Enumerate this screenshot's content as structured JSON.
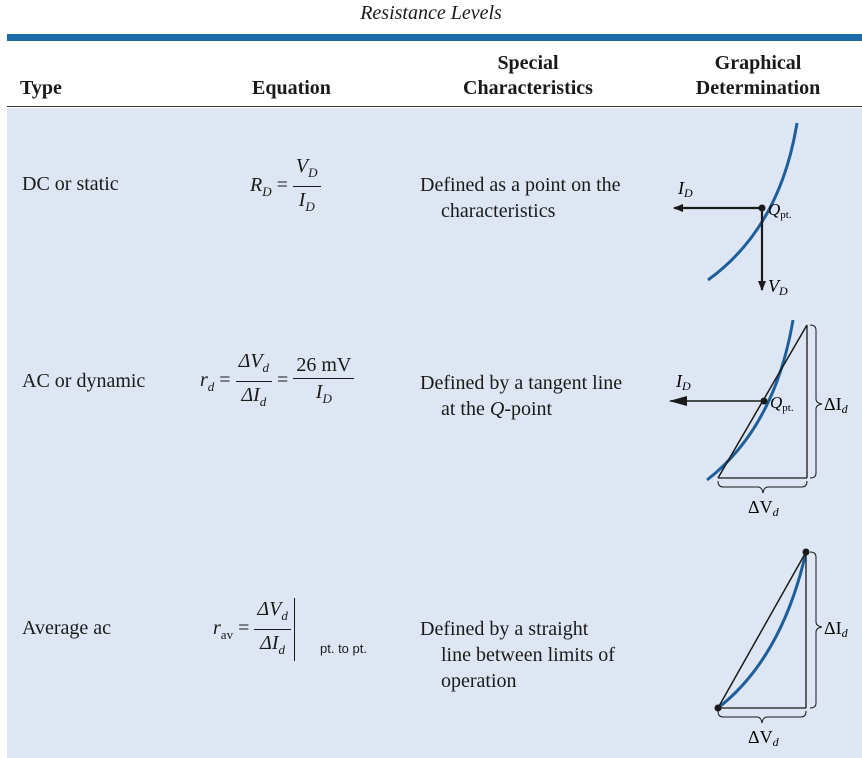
{
  "caption": "Resistance Levels",
  "headers": {
    "type": "Type",
    "equation": "Equation",
    "special_1": "Special",
    "special_2": "Characteristics",
    "graph_1": "Graphical",
    "graph_2": "Determination"
  },
  "rows": [
    {
      "type": "DC or static",
      "eq_lhs": "R",
      "eq_lhs_sub": "D",
      "eq_num": "V",
      "eq_num_sub": "D",
      "eq_den": "I",
      "eq_den_sub": "D",
      "desc_1": "Defined as a point on the",
      "desc_2": "characteristics",
      "g_label_i": "I",
      "g_label_i_sub": "D",
      "g_label_q": "Q",
      "g_label_q_sub": "pt.",
      "g_label_v": "V",
      "g_label_v_sub": "D"
    },
    {
      "type": "AC or dynamic",
      "eq_lhs": "r",
      "eq_lhs_sub": "d",
      "eq_num": "ΔV",
      "eq_num_sub": "d",
      "eq_den": "ΔI",
      "eq_den_sub": "d",
      "eq2_num": "26 mV",
      "eq2_den": "I",
      "eq2_den_sub": "D",
      "desc_1": "Defined by a tangent line",
      "desc_2a": "at the ",
      "desc_2q": "Q",
      "desc_2b": "-point",
      "g_label_i": "I",
      "g_label_i_sub": "D",
      "g_label_q": "Q",
      "g_label_q_sub": "pt.",
      "g_label_di": "ΔI",
      "g_label_di_sub": "d",
      "g_label_dv": "ΔV",
      "g_label_dv_sub": "d"
    },
    {
      "type": "Average ac",
      "eq_lhs": "r",
      "eq_lhs_sub": "av",
      "eq_num": "ΔV",
      "eq_num_sub": "d",
      "eq_den": "ΔI",
      "eq_den_sub": "d",
      "eq_eval": "pt. to pt.",
      "desc_1": "Defined by a straight",
      "desc_2": "line between limits of",
      "desc_3": "operation",
      "g_label_di": "ΔI",
      "g_label_di_sub": "d",
      "g_label_dv": "ΔV",
      "g_label_dv_sub": "d"
    }
  ],
  "colors": {
    "accent": "#1c6aa8",
    "body_bg": "#dde6f2",
    "curve": "#1c5f9c"
  }
}
